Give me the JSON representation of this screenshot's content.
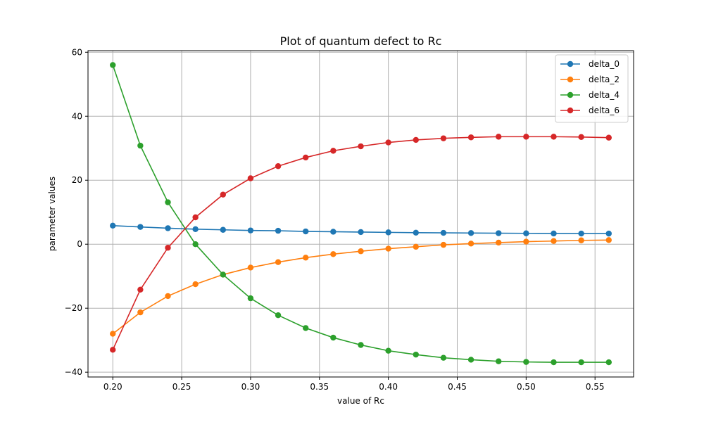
{
  "chart_data": {
    "type": "line",
    "title": "Plot of quantum defect to Rc",
    "xlabel": "value of Rc",
    "ylabel": "parameter values",
    "xlim": [
      0.182,
      0.578
    ],
    "ylim": [
      -41.5,
      60.5
    ],
    "xticks": [
      0.2,
      0.25,
      0.3,
      0.35,
      0.4,
      0.45,
      0.5,
      0.55
    ],
    "xtick_labels": [
      "0.20",
      "0.25",
      "0.30",
      "0.35",
      "0.40",
      "0.45",
      "0.50",
      "0.55"
    ],
    "yticks": [
      -40,
      -20,
      0,
      20,
      40,
      60
    ],
    "ytick_labels": [
      "−40",
      "−20",
      "0",
      "20",
      "40",
      "60"
    ],
    "grid": true,
    "legend_position": "top-right",
    "x": [
      0.2,
      0.22,
      0.24,
      0.26,
      0.28,
      0.3,
      0.32,
      0.34,
      0.36,
      0.38,
      0.4,
      0.42,
      0.44,
      0.46,
      0.48,
      0.5,
      0.52,
      0.54,
      0.56
    ],
    "series": [
      {
        "name": "delta_0",
        "color": "#1f77b4",
        "values": [
          5.8,
          5.4,
          5.0,
          4.7,
          4.5,
          4.3,
          4.2,
          4.0,
          3.9,
          3.8,
          3.7,
          3.6,
          3.55,
          3.5,
          3.45,
          3.4,
          3.35,
          3.33,
          3.32
        ]
      },
      {
        "name": "delta_2",
        "color": "#ff7f0e",
        "values": [
          -28.0,
          -21.3,
          -16.2,
          -12.5,
          -9.5,
          -7.3,
          -5.6,
          -4.2,
          -3.1,
          -2.2,
          -1.4,
          -0.8,
          -0.2,
          0.2,
          0.5,
          0.8,
          1.0,
          1.2,
          1.3
        ]
      },
      {
        "name": "delta_4",
        "color": "#2ca02c",
        "values": [
          56.0,
          30.8,
          13.1,
          0.0,
          -9.5,
          -16.9,
          -22.2,
          -26.2,
          -29.2,
          -31.5,
          -33.3,
          -34.5,
          -35.5,
          -36.1,
          -36.6,
          -36.8,
          -36.9,
          -36.9,
          -36.9
        ]
      },
      {
        "name": "delta_6",
        "color": "#d62728",
        "values": [
          -33.0,
          -14.2,
          -1.1,
          8.4,
          15.5,
          20.6,
          24.4,
          27.1,
          29.2,
          30.6,
          31.8,
          32.6,
          33.1,
          33.4,
          33.6,
          33.6,
          33.6,
          33.5,
          33.3
        ]
      }
    ]
  }
}
